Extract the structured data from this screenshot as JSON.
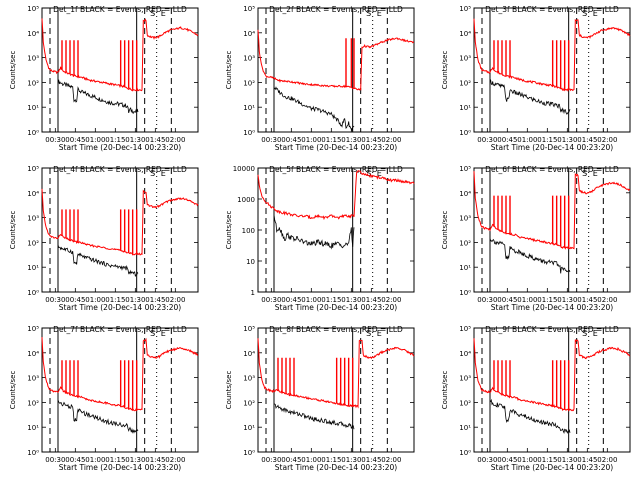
{
  "chart_data": [
    {
      "type": "line",
      "title": "Det_1f BLACK = Events, RED = LLD",
      "xlabel": "Start Time (20-Dec-14 00:23:20)",
      "ylabel": "Counts/sec",
      "scale": "log",
      "ylim": [
        1,
        100000
      ],
      "yticks": [
        "10⁰",
        "10¹",
        "10²",
        "10³",
        "10⁴",
        "10⁵"
      ],
      "xticks": [
        "00:30",
        "00:45",
        "01:00",
        "01:15",
        "01:30",
        "01:45",
        "02:00"
      ],
      "series": [
        {
          "name": "Events",
          "color": "#000000",
          "profile": "A",
          "level": 1.0
        },
        {
          "name": "LLD",
          "color": "#ff0000",
          "profile": "A",
          "level": 1.0
        }
      ]
    },
    {
      "type": "line",
      "title": "Det_2f BLACK = Events, RED = LLD",
      "xlabel": "Start Time (20-Dec-14 00:23:20)",
      "ylabel": "Counts/sec",
      "scale": "log",
      "ylim": [
        1,
        100000
      ],
      "yticks": [
        "10⁰",
        "10¹",
        "10²",
        "10³",
        "10⁴",
        "10⁵"
      ],
      "xticks": [
        "00:30",
        "00:45",
        "01:00",
        "01:15",
        "01:30",
        "01:45",
        "02:00"
      ],
      "series": [
        {
          "name": "Events",
          "color": "#000000",
          "profile": "B",
          "level": 0.9
        },
        {
          "name": "LLD",
          "color": "#ff0000",
          "profile": "B",
          "level": 0.9
        }
      ]
    },
    {
      "type": "line",
      "title": "Det_3f BLACK = Events, RED = LLD",
      "xlabel": "Start Time (20-Dec-14 00:23:20)",
      "ylabel": "Counts/sec",
      "scale": "log",
      "ylim": [
        1,
        100000
      ],
      "yticks": [
        "10⁰",
        "10¹",
        "10²",
        "10³",
        "10⁴",
        "10⁵"
      ],
      "xticks": [
        "00:30",
        "00:45",
        "01:00",
        "01:15",
        "01:30",
        "01:45",
        "02:00"
      ],
      "series": [
        {
          "name": "Events",
          "color": "#000000",
          "profile": "A",
          "level": 1.0
        },
        {
          "name": "LLD",
          "color": "#ff0000",
          "profile": "A",
          "level": 1.0
        }
      ]
    },
    {
      "type": "line",
      "title": "Det_4f BLACK = Events, RED = LLD",
      "xlabel": "Start Time (20-Dec-14 00:23:20)",
      "ylabel": "Counts/sec",
      "scale": "log",
      "ylim": [
        1,
        100000
      ],
      "yticks": [
        "10⁰",
        "10¹",
        "10²",
        "10³",
        "10⁴",
        "10⁵"
      ],
      "xticks": [
        "00:30",
        "00:45",
        "01:00",
        "01:15",
        "01:30",
        "01:45",
        "02:00"
      ],
      "series": [
        {
          "name": "Events",
          "color": "#000000",
          "profile": "A",
          "level": 0.9
        },
        {
          "name": "LLD",
          "color": "#ff0000",
          "profile": "A",
          "level": 0.9
        }
      ]
    },
    {
      "type": "line",
      "title": "Det_5f BLACK = Events, RED = LLD",
      "xlabel": "Start Time (20-Dec-14 00:23:20)",
      "ylabel": "Counts/sec",
      "scale": "log",
      "ylim": [
        1,
        10000
      ],
      "yticks": [
        "1",
        "10",
        "100",
        "1000",
        "10000"
      ],
      "xticks": [
        "00:30",
        "00:45",
        "01:00",
        "01:15",
        "01:30",
        "01:45",
        "02:00"
      ],
      "series": [
        {
          "name": "Events",
          "color": "#000000",
          "profile": "C",
          "level": 1.0
        },
        {
          "name": "LLD",
          "color": "#ff0000",
          "profile": "C",
          "level": 1.0
        }
      ]
    },
    {
      "type": "line",
      "title": "Det_6f BLACK = Events, RED = LLD",
      "xlabel": "Start Time (20-Dec-14 00:23:20)",
      "ylabel": "Counts/sec",
      "scale": "log",
      "ylim": [
        1,
        100000
      ],
      "yticks": [
        "10⁰",
        "10¹",
        "10²",
        "10³",
        "10⁴",
        "10⁵"
      ],
      "xticks": [
        "00:30",
        "00:45",
        "01:00",
        "01:15",
        "01:30",
        "01:45",
        "02:00"
      ],
      "series": [
        {
          "name": "Events",
          "color": "#000000",
          "profile": "A",
          "level": 1.05
        },
        {
          "name": "LLD",
          "color": "#ff0000",
          "profile": "A",
          "level": 1.05
        }
      ]
    },
    {
      "type": "line",
      "title": "Det_7f BLACK = Events, RED = LLD",
      "xlabel": "Start Time (20-Dec-14 00:23:20)",
      "ylabel": "Counts/sec",
      "scale": "log",
      "ylim": [
        1,
        100000
      ],
      "yticks": [
        "10⁰",
        "10¹",
        "10²",
        "10³",
        "10⁴",
        "10⁵"
      ],
      "xticks": [
        "00:30",
        "00:45",
        "01:00",
        "01:15",
        "01:30",
        "01:45",
        "02:00"
      ],
      "series": [
        {
          "name": "Events",
          "color": "#000000",
          "profile": "A",
          "level": 1.0
        },
        {
          "name": "LLD",
          "color": "#ff0000",
          "profile": "A",
          "level": 1.0
        }
      ]
    },
    {
      "type": "line",
      "title": "Det_8f BLACK = Events, RED = LLD",
      "xlabel": "Start Time (20-Dec-14 00:23:20)",
      "ylabel": "Counts/sec",
      "scale": "log",
      "ylim": [
        1,
        100000
      ],
      "yticks": [
        "10⁰",
        "10¹",
        "10²",
        "10³",
        "10⁴",
        "10⁵"
      ],
      "xticks": [
        "00:30",
        "00:45",
        "01:00",
        "01:15",
        "01:30",
        "01:45",
        "02:00"
      ],
      "series": [
        {
          "name": "Events",
          "color": "#000000",
          "profile": "D",
          "level": 1.0
        },
        {
          "name": "LLD",
          "color": "#ff0000",
          "profile": "D",
          "level": 1.0
        }
      ]
    },
    {
      "type": "line",
      "title": "Det_9f BLACK = Events, RED = LLD",
      "xlabel": "Start Time (20-Dec-14 00:23:20)",
      "ylabel": "Counts/sec",
      "scale": "log",
      "ylim": [
        1,
        100000
      ],
      "yticks": [
        "10⁰",
        "10¹",
        "10²",
        "10³",
        "10⁴",
        "10⁵"
      ],
      "xticks": [
        "00:30",
        "00:45",
        "01:00",
        "01:15",
        "01:30",
        "01:45",
        "02:00"
      ],
      "series": [
        {
          "name": "Events",
          "color": "#000000",
          "profile": "A",
          "level": 1.0
        },
        {
          "name": "LLD",
          "color": "#ff0000",
          "profile": "A",
          "level": 1.0
        }
      ]
    }
  ],
  "markers": {
    "labels": [
      "S",
      "E"
    ]
  }
}
